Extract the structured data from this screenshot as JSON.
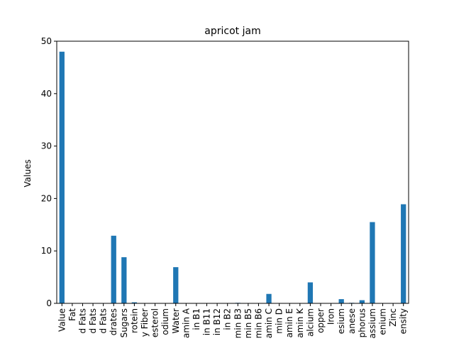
{
  "chart_data": {
    "type": "bar",
    "title": "apricot jam",
    "xlabel": "",
    "ylabel": "Values",
    "ylim": [
      0,
      50
    ],
    "yticks": [
      0,
      10,
      20,
      30,
      40,
      50
    ],
    "grid": false,
    "legend": "none",
    "bar_color": "#1f77b4",
    "categories": [
      "Value",
      "Fat",
      "d Fats",
      "d Fats",
      "d Fats",
      "drates",
      "Sugars",
      "rotein",
      "y Fiber",
      "esterol",
      "odium",
      "Water",
      "amin A",
      "in B1",
      "in B11",
      "in B12",
      "in B2",
      "min B3",
      "min B5",
      "min B6",
      "amin C",
      "min D",
      "amin E",
      "amin K",
      "alcium",
      "opper",
      "Iron",
      "esium",
      "anese",
      "phorus",
      "assium",
      "enium",
      "Zinc",
      "ensity"
    ],
    "values": [
      48.0,
      0,
      0,
      0,
      0,
      12.9,
      8.8,
      0.2,
      0,
      0,
      0,
      6.9,
      0,
      0,
      0,
      0,
      0,
      0.1,
      0,
      0,
      1.8,
      0,
      0,
      0,
      4.0,
      0,
      0,
      0.8,
      0.1,
      0.6,
      15.5,
      0,
      0,
      18.9
    ]
  }
}
